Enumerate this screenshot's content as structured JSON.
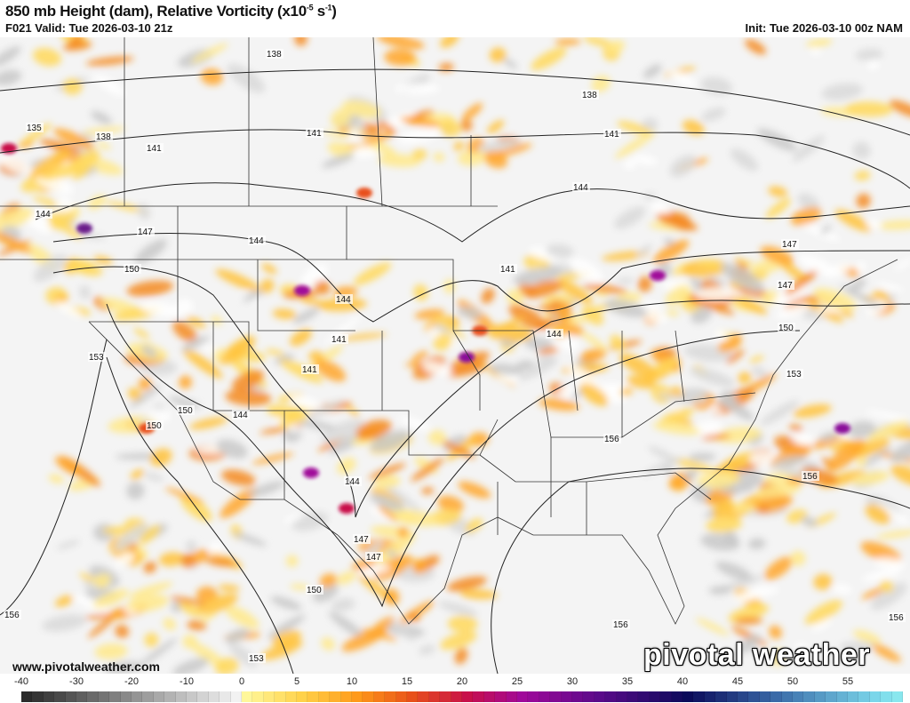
{
  "header": {
    "title": "850 mb Height (dam), Relative Vorticity (x10",
    "title_exp1": "-5",
    "title_mid": " s",
    "title_exp2": "-1",
    "title_end": ")",
    "valid": "F021 Valid: Tue 2026-03-10 21z",
    "init": "Init: Tue 2026-03-10 00z NAM"
  },
  "footer": {
    "website": "www.pivotalweather.com",
    "logo_text": "pivotal weather"
  },
  "map": {
    "contour_labels": [
      "138",
      "138",
      "135",
      "138",
      "141",
      "141",
      "141",
      "144",
      "144",
      "144",
      "147",
      "147",
      "150",
      "150",
      "153",
      "153",
      "150",
      "150",
      "144",
      "144",
      "141",
      "141",
      "141",
      "144",
      "147",
      "147",
      "147",
      "150",
      "156",
      "156",
      "156",
      "156",
      "156",
      "153",
      "144"
    ],
    "contour_color": "#222222"
  },
  "colorbar": {
    "ticks": [
      "-40",
      "-30",
      "-20",
      "-10",
      "0",
      "5",
      "10",
      "15",
      "20",
      "25",
      "30",
      "35",
      "40",
      "45",
      "50",
      "55"
    ],
    "range_negative": [
      -40,
      0
    ],
    "range_positive": [
      0,
      60
    ],
    "colors": [
      "#2b2b2b",
      "#f2f2f2",
      "#fff79a",
      "#ffd24a",
      "#ff9a1a",
      "#e8501a",
      "#c8104a",
      "#a0089a",
      "#5a0a8a",
      "#0a0a5a",
      "#3a6aa8",
      "#7ad6ea",
      "#90f0f0"
    ]
  }
}
